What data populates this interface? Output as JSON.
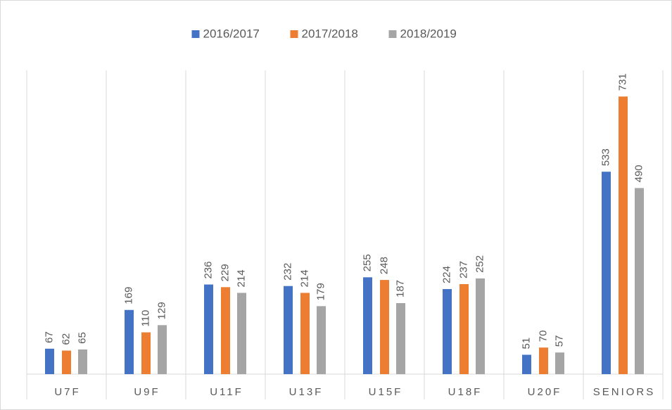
{
  "chart_data": {
    "type": "bar",
    "categories": [
      "U7F",
      "U9F",
      "U11F",
      "U13F",
      "U15F",
      "U18F",
      "U20F",
      "SENIORS"
    ],
    "series": [
      {
        "name": "2016/2017",
        "color": "#4472c4",
        "values": [
          67,
          169,
          236,
          232,
          255,
          224,
          51,
          533
        ]
      },
      {
        "name": "2017/2018",
        "color": "#ed7d31",
        "values": [
          62,
          110,
          229,
          214,
          248,
          237,
          70,
          731
        ]
      },
      {
        "name": "2018/2019",
        "color": "#a5a5a5",
        "values": [
          65,
          129,
          214,
          179,
          187,
          252,
          57,
          490
        ]
      }
    ],
    "ylim": [
      0,
      800
    ],
    "legend": "top"
  }
}
